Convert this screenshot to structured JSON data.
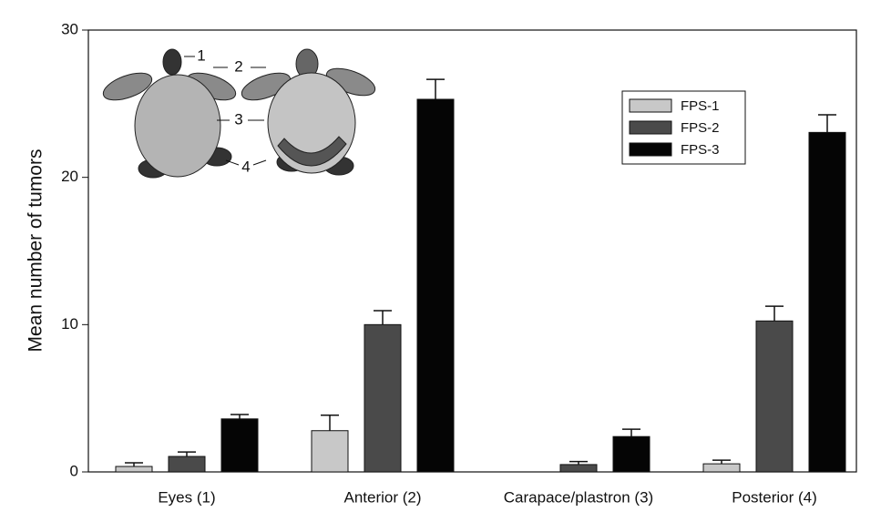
{
  "chart_data": {
    "type": "bar",
    "ylabel": "Mean number of tumors",
    "categories": [
      "Eyes (1)",
      "Anterior (2)",
      "Carapace/plastron (3)",
      "Posterior (4)"
    ],
    "series": [
      {
        "name": "FPS-1",
        "color": "#c8c8c8",
        "values": [
          0.37,
          2.8,
          0,
          0.55
        ],
        "errors": [
          0.25,
          1.05,
          0,
          0.25
        ]
      },
      {
        "name": "FPS-2",
        "color": "#4a4a4a",
        "values": [
          1.05,
          10.0,
          0.5,
          10.25
        ],
        "errors": [
          0.3,
          0.95,
          0.2,
          1.0
        ]
      },
      {
        "name": "FPS-3",
        "color": "#050505",
        "values": [
          3.6,
          25.3,
          2.4,
          23.05
        ],
        "errors": [
          0.3,
          1.35,
          0.5,
          1.2
        ]
      }
    ],
    "ylim": [
      0,
      30
    ],
    "yticks": [
      0,
      10,
      20,
      30
    ],
    "legend": "upper right",
    "annotations": [
      "1",
      "2",
      "3",
      "4"
    ]
  }
}
